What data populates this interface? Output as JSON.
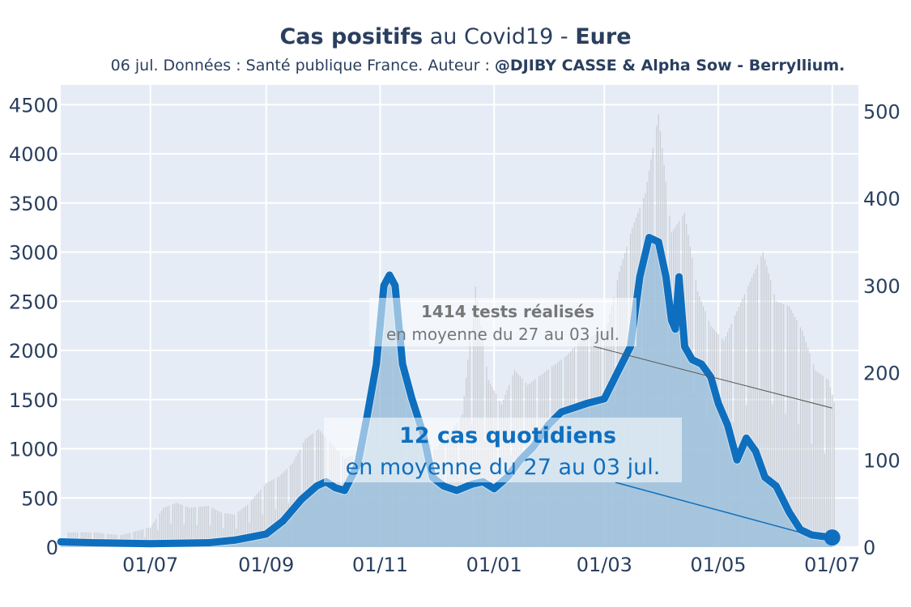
{
  "title": {
    "bold1": "Cas positifs",
    "mid": " au Covid19 - ",
    "bold2": "Eure"
  },
  "subtitle": {
    "text": "06 jul. Données : Santé publique France. Auteur : ",
    "bold": "@DJIBY CASSE & Alpha Sow - Berryllium."
  },
  "colors": {
    "plot_bg": "#e5ecf6",
    "grid": "#ffffff",
    "tests_bar": "#c9ccd2",
    "cases_fill": "#9ec1dc",
    "cases_line": "#0f6fbf",
    "tests_annotation_line": "#555555",
    "cases_annotation_line": "#0f6fbf"
  },
  "chart_data": {
    "type": "line",
    "x_range": [
      "2020-05-14",
      "2021-07-15"
    ],
    "x_ticks": [
      {
        "date": "2020-07-01",
        "label": "01/07"
      },
      {
        "date": "2020-09-01",
        "label": "01/09"
      },
      {
        "date": "2020-11-01",
        "label": "01/11"
      },
      {
        "date": "2021-01-01",
        "label": "01/01"
      },
      {
        "date": "2021-03-01",
        "label": "01/03"
      },
      {
        "date": "2021-05-01",
        "label": "01/05"
      },
      {
        "date": "2021-07-01",
        "label": "01/07"
      }
    ],
    "y_left": {
      "range": [
        0,
        4700
      ],
      "ticks": [
        0,
        500,
        1000,
        1500,
        2000,
        2500,
        3000,
        3500,
        4000,
        4500
      ]
    },
    "y_right": {
      "range": [
        0,
        530
      ],
      "ticks": [
        0,
        100,
        200,
        300,
        400,
        500
      ]
    },
    "series": [
      {
        "axis": "left",
        "style": "bars",
        "points": [
          [
            "2020-05-18",
            150
          ],
          [
            "2020-06-01",
            150
          ],
          [
            "2020-06-15",
            120
          ],
          [
            "2020-07-01",
            200
          ],
          [
            "2020-07-08",
            400
          ],
          [
            "2020-07-15",
            450
          ],
          [
            "2020-07-22",
            400
          ],
          [
            "2020-08-01",
            420
          ],
          [
            "2020-08-08",
            350
          ],
          [
            "2020-08-15",
            330
          ],
          [
            "2020-08-22",
            430
          ],
          [
            "2020-09-01",
            650
          ],
          [
            "2020-09-08",
            720
          ],
          [
            "2020-09-15",
            850
          ],
          [
            "2020-09-22",
            1100
          ],
          [
            "2020-09-29",
            1200
          ],
          [
            "2020-10-06",
            1050
          ],
          [
            "2020-10-13",
            900
          ],
          [
            "2020-10-20",
            950
          ],
          [
            "2020-10-27",
            1500
          ],
          [
            "2020-11-03",
            2000
          ],
          [
            "2020-11-10",
            1900
          ],
          [
            "2020-11-17",
            1450
          ],
          [
            "2020-11-24",
            1100
          ],
          [
            "2020-12-01",
            1000
          ],
          [
            "2020-12-08",
            1150
          ],
          [
            "2020-12-15",
            1350
          ],
          [
            "2020-12-22",
            2650
          ],
          [
            "2020-12-29",
            1700
          ],
          [
            "2021-01-05",
            1450
          ],
          [
            "2021-01-12",
            1800
          ],
          [
            "2021-01-19",
            1650
          ],
          [
            "2021-01-26",
            1750
          ],
          [
            "2021-02-02",
            1850
          ],
          [
            "2021-02-09",
            1950
          ],
          [
            "2021-02-16",
            2100
          ],
          [
            "2021-02-23",
            2150
          ],
          [
            "2021-03-02",
            2200
          ],
          [
            "2021-03-09",
            2800
          ],
          [
            "2021-03-16",
            3250
          ],
          [
            "2021-03-23",
            3600
          ],
          [
            "2021-03-30",
            4400
          ],
          [
            "2021-04-06",
            3200
          ],
          [
            "2021-04-13",
            3400
          ],
          [
            "2021-04-20",
            2600
          ],
          [
            "2021-04-27",
            2250
          ],
          [
            "2021-05-04",
            2100
          ],
          [
            "2021-05-11",
            2400
          ],
          [
            "2021-05-18",
            2700
          ],
          [
            "2021-05-25",
            3000
          ],
          [
            "2021-06-01",
            2500
          ],
          [
            "2021-06-08",
            2450
          ],
          [
            "2021-06-15",
            2200
          ],
          [
            "2021-06-22",
            1800
          ],
          [
            "2021-06-29",
            1700
          ],
          [
            "2021-07-03",
            1400
          ]
        ]
      },
      {
        "axis": "right",
        "style": "line-area",
        "points": [
          [
            "2020-05-14",
            6
          ],
          [
            "2020-06-01",
            5
          ],
          [
            "2020-07-01",
            4
          ],
          [
            "2020-08-01",
            5
          ],
          [
            "2020-08-15",
            8
          ],
          [
            "2020-08-25",
            12
          ],
          [
            "2020-09-01",
            15
          ],
          [
            "2020-09-10",
            30
          ],
          [
            "2020-09-20",
            55
          ],
          [
            "2020-09-28",
            70
          ],
          [
            "2020-10-03",
            75
          ],
          [
            "2020-10-08",
            68
          ],
          [
            "2020-10-13",
            65
          ],
          [
            "2020-10-20",
            95
          ],
          [
            "2020-10-25",
            150
          ],
          [
            "2020-10-30",
            210
          ],
          [
            "2020-11-03",
            300
          ],
          [
            "2020-11-06",
            312
          ],
          [
            "2020-11-09",
            300
          ],
          [
            "2020-11-13",
            210
          ],
          [
            "2020-11-18",
            170
          ],
          [
            "2020-11-24",
            130
          ],
          [
            "2020-11-29",
            80
          ],
          [
            "2020-12-05",
            70
          ],
          [
            "2020-12-12",
            65
          ],
          [
            "2020-12-20",
            72
          ],
          [
            "2020-12-26",
            75
          ],
          [
            "2021-01-01",
            67
          ],
          [
            "2021-01-08",
            80
          ],
          [
            "2021-01-15",
            100
          ],
          [
            "2021-01-22",
            115
          ],
          [
            "2021-01-30",
            140
          ],
          [
            "2021-02-06",
            155
          ],
          [
            "2021-02-13",
            160
          ],
          [
            "2021-02-20",
            165
          ],
          [
            "2021-03-01",
            170
          ],
          [
            "2021-03-08",
            200
          ],
          [
            "2021-03-15",
            230
          ],
          [
            "2021-03-20",
            310
          ],
          [
            "2021-03-25",
            355
          ],
          [
            "2021-03-30",
            350
          ],
          [
            "2021-04-03",
            310
          ],
          [
            "2021-04-06",
            260
          ],
          [
            "2021-04-08",
            250
          ],
          [
            "2021-04-10",
            310
          ],
          [
            "2021-04-13",
            230
          ],
          [
            "2021-04-17",
            215
          ],
          [
            "2021-04-22",
            210
          ],
          [
            "2021-04-27",
            195
          ],
          [
            "2021-05-01",
            165
          ],
          [
            "2021-05-06",
            140
          ],
          [
            "2021-05-11",
            100
          ],
          [
            "2021-05-16",
            125
          ],
          [
            "2021-05-21",
            110
          ],
          [
            "2021-05-26",
            80
          ],
          [
            "2021-06-01",
            70
          ],
          [
            "2021-06-08",
            40
          ],
          [
            "2021-06-14",
            20
          ],
          [
            "2021-06-20",
            14
          ],
          [
            "2021-06-27",
            12
          ],
          [
            "2021-07-01",
            11
          ]
        ]
      }
    ],
    "annotations": [
      {
        "series_axis": "left",
        "bold": "1414 tests réalisés",
        "text": "en moyenne du 27 au 03 jul.",
        "point": [
          "2021-07-01",
          1414
        ]
      },
      {
        "series_axis": "right",
        "bold": "12 cas quotidiens",
        "text": "en moyenne du 27 au 03 jul.",
        "point": [
          "2021-07-01",
          12
        ]
      }
    ]
  }
}
